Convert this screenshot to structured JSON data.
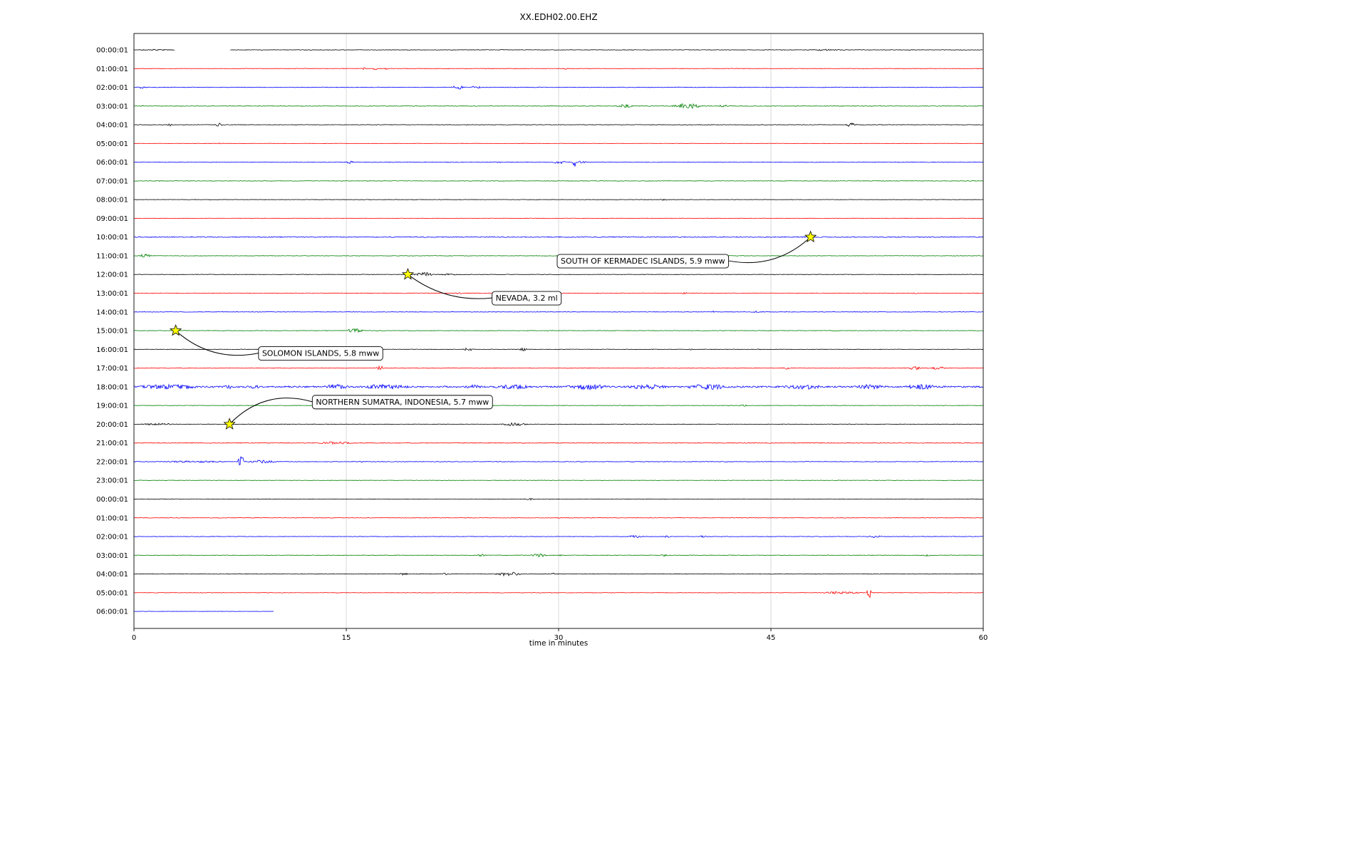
{
  "chart_data": {
    "type": "line",
    "subtype": "helicorder-seismogram",
    "title": "XX.EDH02.00.EHZ",
    "xlabel": "time in minutes",
    "ylabel": "",
    "xlim": [
      0,
      60
    ],
    "x_ticks": [
      0,
      15,
      30,
      45,
      60
    ],
    "grid": "vertical-only",
    "legend": "none",
    "trace_colors_cycle": [
      "#000000",
      "#ff0000",
      "#0000ff",
      "#008000"
    ],
    "star_color": "#ffff00",
    "rows": [
      {
        "label": "00:00:01",
        "color": "#000000",
        "noise": 0.35,
        "segments": [
          [
            0,
            2.9
          ],
          [
            6.8,
            60
          ]
        ],
        "bursts": [
          [
            0.2,
            2.9,
            0.5
          ],
          [
            25.8,
            26.2,
            0.5
          ],
          [
            47.3,
            50.5,
            0.6
          ]
        ]
      },
      {
        "label": "01:00:01",
        "color": "#ff0000",
        "noise": 0.35,
        "bursts": [
          [
            16.1,
            16.5,
            1.2
          ],
          [
            16.8,
            17.3,
            1.4
          ],
          [
            17.6,
            18.0,
            1.1
          ],
          [
            30.3,
            30.7,
            1.3
          ]
        ]
      },
      {
        "label": "02:00:01",
        "color": "#0000ff",
        "noise": 0.4,
        "bursts": [
          [
            0.2,
            0.9,
            1.2
          ],
          [
            22.4,
            23.4,
            2.6
          ],
          [
            23.8,
            24.6,
            2.0
          ]
        ]
      },
      {
        "label": "03:00:01",
        "color": "#008000",
        "noise": 0.4,
        "bursts": [
          [
            34.1,
            35.3,
            1.8
          ],
          [
            37.9,
            40.3,
            2.8
          ],
          [
            41.3,
            42.0,
            1.6
          ]
        ]
      },
      {
        "label": "04:00:01",
        "color": "#000000",
        "noise": 0.35,
        "bursts": [
          [
            2.2,
            2.8,
            1.4
          ],
          [
            5.7,
            6.3,
            2.2
          ],
          [
            50.2,
            51.1,
            2.4
          ]
        ]
      },
      {
        "label": "05:00:01",
        "color": "#ff0000",
        "noise": 0.3,
        "bursts": [
          [
            5.8,
            6.2,
            1.0
          ]
        ]
      },
      {
        "label": "06:00:01",
        "color": "#0000ff",
        "noise": 0.4,
        "bursts": [
          [
            15.0,
            15.6,
            2.6
          ],
          [
            25.4,
            26.0,
            0.8
          ],
          [
            29.5,
            30.6,
            1.8
          ],
          [
            30.9,
            31.25,
            9.0
          ],
          [
            31.3,
            32.0,
            1.5
          ]
        ]
      },
      {
        "label": "07:00:01",
        "color": "#008000",
        "noise": 0.35,
        "bursts": [
          [
            1.5,
            2.0,
            1.6
          ]
        ]
      },
      {
        "label": "08:00:01",
        "color": "#000000",
        "noise": 0.3,
        "bursts": [
          [
            37.1,
            37.7,
            0.9
          ]
        ]
      },
      {
        "label": "09:00:01",
        "color": "#ff0000",
        "noise": 0.35,
        "bursts": []
      },
      {
        "label": "10:00:01",
        "color": "#0000ff",
        "noise": 0.6,
        "bursts": []
      },
      {
        "label": "11:00:01",
        "color": "#008000",
        "noise": 0.35,
        "bursts": [
          [
            0.2,
            1.3,
            2.0
          ]
        ]
      },
      {
        "label": "12:00:01",
        "color": "#000000",
        "noise": 0.35,
        "bursts": [
          [
            19.7,
            21.2,
            2.6
          ],
          [
            21.4,
            23.0,
            0.8
          ]
        ]
      },
      {
        "label": "13:00:01",
        "color": "#ff0000",
        "noise": 0.4,
        "bursts": [
          [
            22.7,
            23.2,
            0.9
          ],
          [
            38.7,
            39.2,
            0.9
          ],
          [
            55.0,
            55.4,
            0.6
          ]
        ]
      },
      {
        "label": "14:00:01",
        "color": "#0000ff",
        "noise": 0.35,
        "bursts": [
          [
            40.7,
            41.3,
            1.1
          ],
          [
            43.7,
            44.3,
            1.0
          ]
        ]
      },
      {
        "label": "15:00:01",
        "color": "#008000",
        "noise": 0.35,
        "bursts": [
          [
            14.9,
            16.3,
            2.4
          ]
        ]
      },
      {
        "label": "16:00:01",
        "color": "#000000",
        "noise": 0.35,
        "bursts": [
          [
            16.3,
            16.9,
            1.0
          ],
          [
            23.2,
            24.0,
            1.9
          ],
          [
            27.2,
            27.9,
            1.9
          ],
          [
            39.1,
            39.5,
            0.8
          ]
        ]
      },
      {
        "label": "17:00:01",
        "color": "#ff0000",
        "noise": 0.4,
        "bursts": [
          [
            17.1,
            17.7,
            2.4
          ],
          [
            45.8,
            46.4,
            1.3
          ],
          [
            54.6,
            55.7,
            2.2
          ],
          [
            56.3,
            57.4,
            1.6
          ]
        ]
      },
      {
        "label": "18:00:01",
        "color": "#0000ff",
        "noise": 1.1,
        "bursts": [
          [
            0.2,
            4.8,
            2.2
          ],
          [
            6.3,
            7.1,
            1.6
          ],
          [
            8.2,
            8.9,
            1.6
          ],
          [
            13.4,
            15.2,
            2.4
          ],
          [
            15.8,
            19.6,
            2.2
          ],
          [
            23.4,
            24.6,
            1.6
          ],
          [
            25.4,
            28.2,
            2.0
          ],
          [
            30.4,
            33.6,
            2.8
          ],
          [
            34.9,
            37.7,
            2.4
          ],
          [
            38.9,
            42.2,
            2.8
          ],
          [
            45.9,
            48.7,
            2.4
          ],
          [
            50.9,
            53.2,
            2.0
          ],
          [
            54.3,
            56.8,
            2.4
          ]
        ]
      },
      {
        "label": "19:00:01",
        "color": "#008000",
        "noise": 0.3,
        "bursts": [
          [
            42.7,
            43.4,
            0.9
          ]
        ]
      },
      {
        "label": "20:00:01",
        "color": "#000000",
        "noise": 0.35,
        "bursts": [
          [
            0.4,
            3.1,
            1.0
          ],
          [
            25.9,
            27.9,
            1.9
          ]
        ]
      },
      {
        "label": "21:00:01",
        "color": "#ff0000",
        "noise": 0.5,
        "bursts": [
          [
            12.9,
            15.6,
            1.1
          ]
        ]
      },
      {
        "label": "22:00:01",
        "color": "#0000ff",
        "noise": 0.4,
        "bursts": [
          [
            1.9,
            6.6,
            0.9
          ],
          [
            7.25,
            7.95,
            8.0
          ],
          [
            8.0,
            10.2,
            1.6
          ],
          [
            15.9,
            16.3,
            0.7
          ]
        ]
      },
      {
        "label": "23:00:01",
        "color": "#008000",
        "noise": 0.3,
        "bursts": []
      },
      {
        "label": "00:00:01",
        "color": "#000000",
        "noise": 0.3,
        "bursts": [
          [
            27.7,
            28.3,
            1.1
          ]
        ]
      },
      {
        "label": "01:00:01",
        "color": "#ff0000",
        "noise": 0.35,
        "bursts": [
          [
            29.7,
            30.2,
            0.7
          ]
        ]
      },
      {
        "label": "02:00:01",
        "color": "#0000ff",
        "noise": 0.35,
        "bursts": [
          [
            34.8,
            36.1,
            1.4
          ],
          [
            37.4,
            38.0,
            1.0
          ],
          [
            39.9,
            40.5,
            0.9
          ],
          [
            51.8,
            52.9,
            1.4
          ]
        ]
      },
      {
        "label": "03:00:01",
        "color": "#008000",
        "noise": 0.35,
        "bursts": [
          [
            24.2,
            24.9,
            1.4
          ],
          [
            27.9,
            29.4,
            1.9
          ],
          [
            30.0,
            30.4,
            1.0
          ],
          [
            37.2,
            37.8,
            1.2
          ],
          [
            55.7,
            56.4,
            1.0
          ]
        ]
      },
      {
        "label": "04:00:01",
        "color": "#000000",
        "noise": 0.35,
        "bursts": [
          [
            18.7,
            19.4,
            1.2
          ],
          [
            21.7,
            22.4,
            1.1
          ],
          [
            25.4,
            27.6,
            2.2
          ],
          [
            29.4,
            30.1,
            0.9
          ]
        ]
      },
      {
        "label": "05:00:01",
        "color": "#ff0000",
        "noise": 0.35,
        "bursts": [
          [
            48.4,
            51.6,
            1.3
          ],
          [
            51.75,
            52.2,
            9.0
          ]
        ]
      },
      {
        "label": "06:00:01",
        "color": "#0000ff",
        "noise": 0.15,
        "segments": [
          [
            0,
            9.9
          ]
        ],
        "bursts": []
      }
    ],
    "events": [
      {
        "name": "SOUTH OF KERMADEC ISLANDS, 5.9 mww",
        "row": 10,
        "t": 47.8,
        "label_t": 29.9,
        "label_row": 11.27,
        "rad": 0.25
      },
      {
        "name": "NEVADA, 3.2 ml",
        "row": 12,
        "t": 19.35,
        "label_t": 25.3,
        "label_row": 13.25,
        "rad": -0.2
      },
      {
        "name": "SOLOMON ISLANDS, 5.8 mww",
        "row": 15,
        "t": 2.95,
        "label_t": 8.8,
        "label_row": 16.2,
        "rad": -0.25
      },
      {
        "name": "NORTHERN SUMATRA, INDONESIA, 5.7 mww",
        "row": 20,
        "t": 6.75,
        "label_t": 12.6,
        "label_row": 18.8,
        "rad": 0.3
      }
    ]
  }
}
